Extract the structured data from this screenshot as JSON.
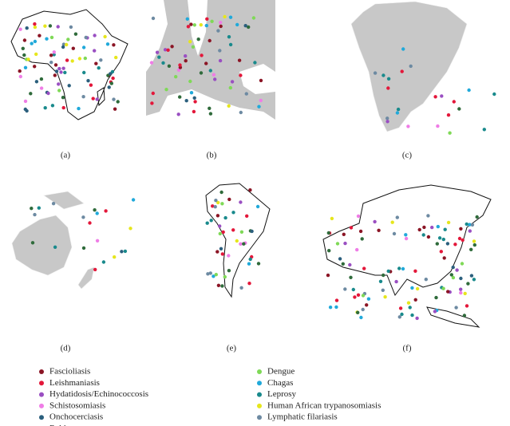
{
  "panels": [
    {
      "label": "(a)"
    },
    {
      "label": "(b)"
    },
    {
      "label": "(c)"
    },
    {
      "label": "(d)"
    },
    {
      "label": "(e)"
    },
    {
      "label": "(f)"
    }
  ],
  "legend": [
    {
      "name": "Fascioliasis",
      "color": "#8b1525"
    },
    {
      "name": "Leishmaniasis",
      "color": "#e3173a"
    },
    {
      "name": "Hydatidosis/Echinococcosis",
      "color": "#9a4fc2"
    },
    {
      "name": "Schistosomiasis",
      "color": "#ef7de6"
    },
    {
      "name": "Onchocerciasis",
      "color": "#2b5f7d"
    },
    {
      "name": "Rabies",
      "color": "#2f6b3b"
    },
    {
      "name": "Dengue",
      "color": "#7fd957"
    },
    {
      "name": "Chagas",
      "color": "#20a9da"
    },
    {
      "name": "Leprosy",
      "color": "#198a8c"
    },
    {
      "name": "Human African trypanosomiasis",
      "color": "#e6e61c"
    },
    {
      "name": "Lymphatic filariasis",
      "color": "#6d8aa2"
    }
  ]
}
